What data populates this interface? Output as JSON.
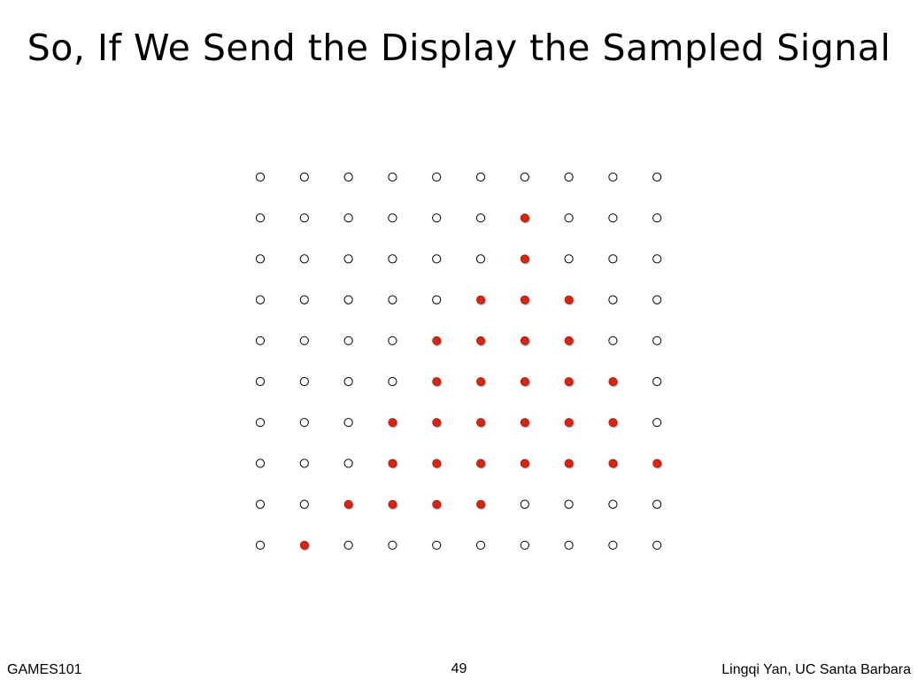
{
  "slide": {
    "title": "So, If We Send the Display the Sampled Signal"
  },
  "grid": {
    "rows": 10,
    "cols": 10,
    "filled": [
      [
        0,
        0,
        0,
        0,
        0,
        0,
        0,
        0,
        0,
        0
      ],
      [
        0,
        0,
        0,
        0,
        0,
        0,
        1,
        0,
        0,
        0
      ],
      [
        0,
        0,
        0,
        0,
        0,
        0,
        1,
        0,
        0,
        0
      ],
      [
        0,
        0,
        0,
        0,
        0,
        1,
        1,
        1,
        0,
        0
      ],
      [
        0,
        0,
        0,
        0,
        1,
        1,
        1,
        1,
        0,
        0
      ],
      [
        0,
        0,
        0,
        0,
        1,
        1,
        1,
        1,
        1,
        0
      ],
      [
        0,
        0,
        0,
        1,
        1,
        1,
        1,
        1,
        1,
        0
      ],
      [
        0,
        0,
        0,
        1,
        1,
        1,
        1,
        1,
        1,
        1
      ],
      [
        0,
        0,
        1,
        1,
        1,
        1,
        0,
        0,
        0,
        0
      ],
      [
        0,
        1,
        0,
        0,
        0,
        0,
        0,
        0,
        0,
        0
      ]
    ],
    "colors": {
      "filled": "#e0220f",
      "empty_stroke": "#000000"
    }
  },
  "footer": {
    "left": "GAMES101",
    "page_number": "49",
    "right": "Lingqi Yan, UC Santa Barbara"
  }
}
